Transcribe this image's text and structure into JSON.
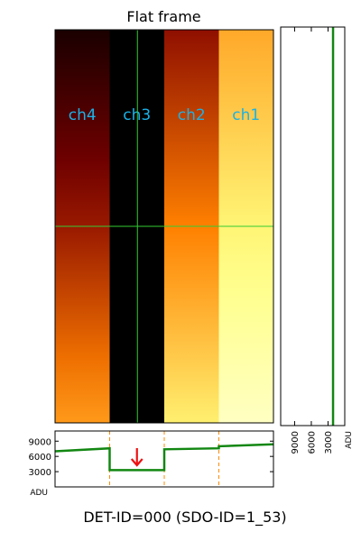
{
  "figure": {
    "title": "Flat frame",
    "footer": "DET-ID=000 (SDO-ID=1_53)"
  },
  "colors": {
    "profile": "#128712",
    "crosshair": "#33cc33",
    "channel_label": "#1ab2e8",
    "boundary": "#ff8c00",
    "arrow": "#ee1111"
  },
  "chart_data": [
    {
      "type": "heatmap",
      "title": "Flat frame",
      "colormap": "afmhot",
      "channels": [
        {
          "name": "ch4",
          "brightness_top": 0.05,
          "brightness_bottom": 0.55
        },
        {
          "name": "ch3",
          "brightness_top": 0.0,
          "brightness_bottom": 0.0
        },
        {
          "name": "ch2",
          "brightness_top": 0.28,
          "brightness_bottom": 0.72
        },
        {
          "name": "ch1",
          "brightness_top": 0.58,
          "brightness_bottom": 0.88
        }
      ],
      "crosshair": {
        "column_fraction": 0.375,
        "row_fraction": 0.5
      }
    },
    {
      "type": "line",
      "ylabel": "ADU",
      "ylim": [
        0,
        11000
      ],
      "yticks": [
        3000,
        6000,
        9000
      ],
      "x_fraction": [
        0.0,
        0.25,
        0.25,
        0.5,
        0.5,
        0.75,
        0.75,
        1.0
      ],
      "y": [
        7000,
        7600,
        3300,
        3300,
        7400,
        7600,
        8000,
        8400
      ],
      "annotation": "dark channel (ch3)"
    },
    {
      "type": "line",
      "orientation": "vertical",
      "xlabel": "ADU",
      "xlim": [
        11500,
        0
      ],
      "xticks": [
        9000,
        6000,
        3000
      ],
      "tick_labels": [
        "9000",
        "6000",
        "3000"
      ],
      "value": 2100
    }
  ]
}
